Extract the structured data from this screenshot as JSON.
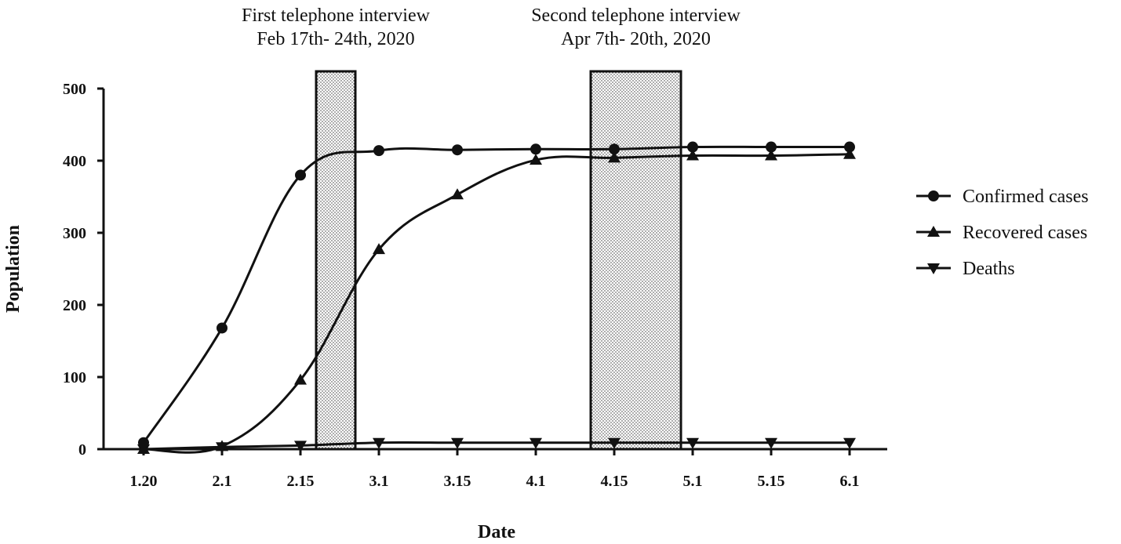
{
  "chart_data": {
    "type": "line",
    "xlabel": "Date",
    "ylabel": "Population",
    "categories": [
      "1.20",
      "2.1",
      "2.15",
      "3.1",
      "3.15",
      "4.1",
      "4.15",
      "5.1",
      "5.15",
      "6.1"
    ],
    "ylim": [
      0,
      500
    ],
    "yticks": [
      0,
      100,
      200,
      300,
      400,
      500
    ],
    "grid": false,
    "legend_position": "right",
    "series": [
      {
        "name": "Confirmed cases",
        "marker": "circle",
        "values": [
          9,
          168,
          380,
          414,
          415,
          416,
          416,
          419,
          419,
          419
        ]
      },
      {
        "name": "Recovered cases",
        "marker": "triangle-up",
        "values": [
          0,
          4,
          96,
          277,
          353,
          401,
          404,
          407,
          407,
          409
        ]
      },
      {
        "name": "Deaths",
        "marker": "triangle-down",
        "values": [
          0,
          3,
          5,
          9,
          9,
          9,
          9,
          9,
          9,
          9
        ]
      }
    ],
    "annotations": [
      {
        "line1": "First telephone interview",
        "line2": "Feb 17th- 24th, 2020",
        "x_start": 2.2,
        "x_end": 2.7
      },
      {
        "line1": "Second telephone interview",
        "line2": "Apr 7th- 20th, 2020",
        "x_start": 5.7,
        "x_end": 6.85
      }
    ]
  }
}
